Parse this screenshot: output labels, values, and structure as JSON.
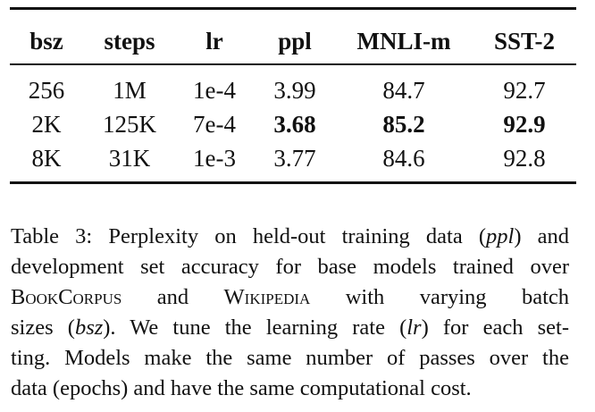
{
  "table": {
    "header": [
      "bsz",
      "steps",
      "lr",
      "ppl",
      "MNLI-m",
      "SST-2"
    ],
    "rows": [
      [
        "256",
        "1M",
        "1e-4",
        "3.99",
        "84.7",
        "92.7"
      ],
      [
        "2K",
        "125K",
        "7e-4",
        "3.68",
        "85.2",
        "92.9"
      ],
      [
        "8K",
        "31K",
        "1e-3",
        "3.77",
        "84.6",
        "92.8"
      ]
    ]
  },
  "caption": {
    "lines": [
      [
        "Table 3: Perplexity on held-out training data (",
        "ppl",
        ") and"
      ],
      [
        "development set accuracy for base models trained over"
      ],
      [
        "BookCorpus",
        " and ",
        "Wikipedia",
        " with varying batch"
      ],
      [
        "sizes (",
        "bsz",
        "). We tune the learning rate (",
        "lr",
        ") for each set-"
      ],
      [
        "ting. Models make the same number of passes over the"
      ],
      [
        "data (epochs) and have the same computational cost."
      ]
    ]
  }
}
